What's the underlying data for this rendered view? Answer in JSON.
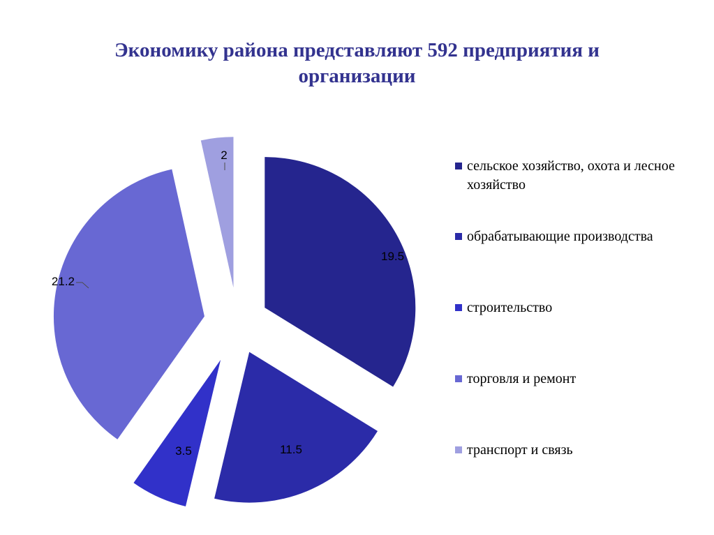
{
  "title": "Экономику района представляют 592 предприятия и организации",
  "colors": {
    "title": "#33338f",
    "slices": [
      "#25258e",
      "#2b2ba8",
      "#3131c9",
      "#6868d3",
      "#9f9fe0"
    ]
  },
  "legend": {
    "placement": "right",
    "items": [
      "сельское хозяйство, охота и лесное хозяйство",
      "обрабатывающие производства",
      "строительство",
      "торговля и ремонт",
      "транспорт и связь"
    ]
  },
  "chart_data": {
    "type": "pie",
    "title": "Экономику района представляют 592 предприятия и организации",
    "exploded": true,
    "start_angle": "12 o'clock, clockwise",
    "categories": [
      "сельское хозяйство, охота и лесное хозяйство",
      "обрабатывающие производства",
      "строительство",
      "торговля и ремонт",
      "транспорт и связь"
    ],
    "values": [
      19.5,
      11.5,
      3.5,
      21.2,
      2
    ],
    "data_labels": [
      "19.5",
      "11.5",
      "3.5",
      "21.2",
      "2"
    ]
  }
}
